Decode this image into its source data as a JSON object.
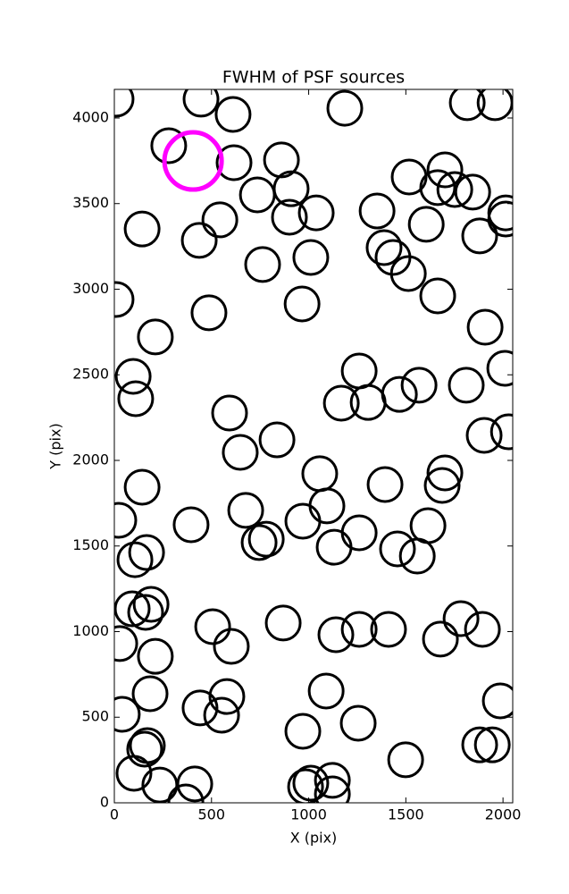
{
  "chart_data": {
    "type": "scatter",
    "title": "FWHM of PSF sources",
    "x_label": "X (pix)",
    "y_label": "Y (pix)",
    "xlim": [
      0,
      2050
    ],
    "ylim": [
      0,
      4167
    ],
    "xticks": [
      0,
      500,
      1000,
      1500,
      2000
    ],
    "yticks": [
      0,
      500,
      1000,
      1500,
      2000,
      2500,
      3000,
      3500,
      4000
    ],
    "series": [
      {
        "color": "#000000",
        "x": [
          9,
          446,
          280,
          611,
          1186,
          1816,
          1959,
          616,
          860,
          736,
          910,
          901,
          1039,
          543,
          143,
          437,
          763,
          1011,
          1517,
          1701,
          1664,
          1752,
          1844,
          1352,
          1605,
          1880,
          2014,
          2014,
          1388,
          1434,
          1513,
          1664,
          9,
          966,
          487,
          211,
          1908,
          97,
          110,
          1260,
          1168,
          1306,
          1467,
          1568,
          1811,
          2009,
          593,
          1903,
          2028,
          837,
          648,
          1057,
          1701,
          1687,
          1393,
          143,
          23,
          1094,
          676,
          395,
          970,
          1614,
          1260,
          745,
          782,
          1131,
          1457,
          1559,
          166,
          106,
          92,
          161,
          189,
          506,
          869,
          602,
          1140,
          1260,
          1411,
          1784,
          1894,
          1678,
          28,
          211,
          184,
          579,
          441,
          552,
          41,
          1090,
          1986,
          1255,
          970,
          1880,
          1945,
          170,
          156,
          1499,
          101,
          234,
          414,
          984,
          1011,
          1122,
          1122,
          368
        ],
        "values": [
          4110,
          4110,
          3838,
          4021,
          4057,
          4089,
          4089,
          3739,
          3755,
          3551,
          3587,
          3420,
          3446,
          3405,
          3352,
          3285,
          3144,
          3185,
          3655,
          3697,
          3593,
          3582,
          3567,
          3457,
          3379,
          3311,
          3446,
          3410,
          3243,
          3185,
          3091,
          2961,
          2940,
          2914,
          2862,
          2721,
          2778,
          2491,
          2360,
          2522,
          2334,
          2339,
          2386,
          2439,
          2439,
          2538,
          2277,
          2146,
          2167,
          2120,
          2047,
          1922,
          1927,
          1854,
          1859,
          1843,
          1650,
          1734,
          1708,
          1624,
          1645,
          1619,
          1577,
          1520,
          1540,
          1493,
          1483,
          1441,
          1462,
          1420,
          1133,
          1112,
          1159,
          1029,
          1050,
          914,
          982,
          1013,
          1013,
          1076,
          1013,
          956,
          930,
          856,
          637,
          621,
          554,
          512,
          517,
          653,
          595,
          465,
          418,
          339,
          339,
          334,
          313,
          251,
          172,
          104,
          110,
          94,
          115,
          131,
          52,
          5
        ]
      },
      {
        "color": "#ff00ff",
        "x": [
          405
        ],
        "values": [
          3749
        ]
      }
    ]
  }
}
